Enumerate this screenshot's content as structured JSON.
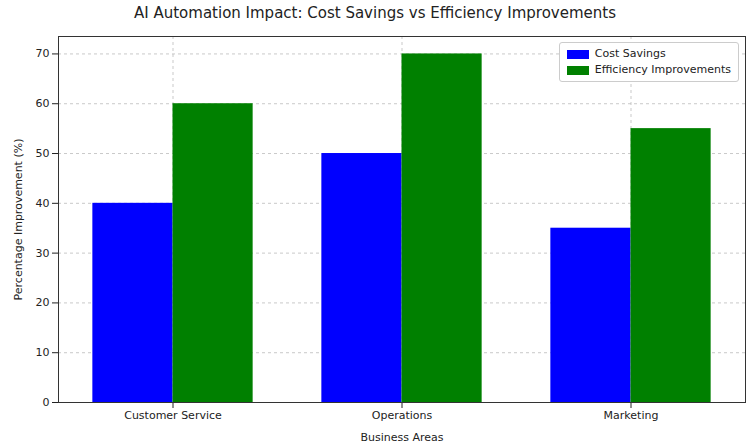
{
  "chart_data": {
    "type": "bar",
    "title": "AI Automation Impact: Cost Savings vs Efficiency Improvements",
    "x_label": "Business Areas",
    "y_label": "Percentage Improvement (%)",
    "categories": [
      "Customer Service",
      "Operations",
      "Marketing"
    ],
    "series": [
      {
        "name": "Cost Savings",
        "color": "#0000ff",
        "values": [
          40,
          50,
          35
        ]
      },
      {
        "name": "Efficiency Improvements",
        "color": "#008000",
        "values": [
          60,
          70,
          55
        ]
      }
    ],
    "ylim": [
      0,
      73.5
    ],
    "yticks": [
      0,
      10,
      20,
      30,
      40,
      50,
      60,
      70
    ],
    "grid": true,
    "legend": "upper right"
  }
}
